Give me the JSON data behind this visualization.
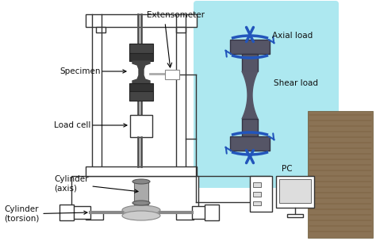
{
  "bg_color": "#ffffff",
  "light_blue_bg": "#ade8f0",
  "machine_line_color": "#333333",
  "arrow_blue": "#2255bb",
  "label_color": "#111111",
  "labels": {
    "extensometer": "Extensometer",
    "specimen": "Specimen",
    "load_cell": "Load cell",
    "cylinder_axis": "Cylinder\n(axis)",
    "cylinder_torsion": "Cylinder\n(torsion)",
    "axial_load": "Axial load",
    "shear_load": "Shear load",
    "pc": "PC"
  },
  "figsize": [
    4.74,
    3.04
  ],
  "dpi": 100
}
